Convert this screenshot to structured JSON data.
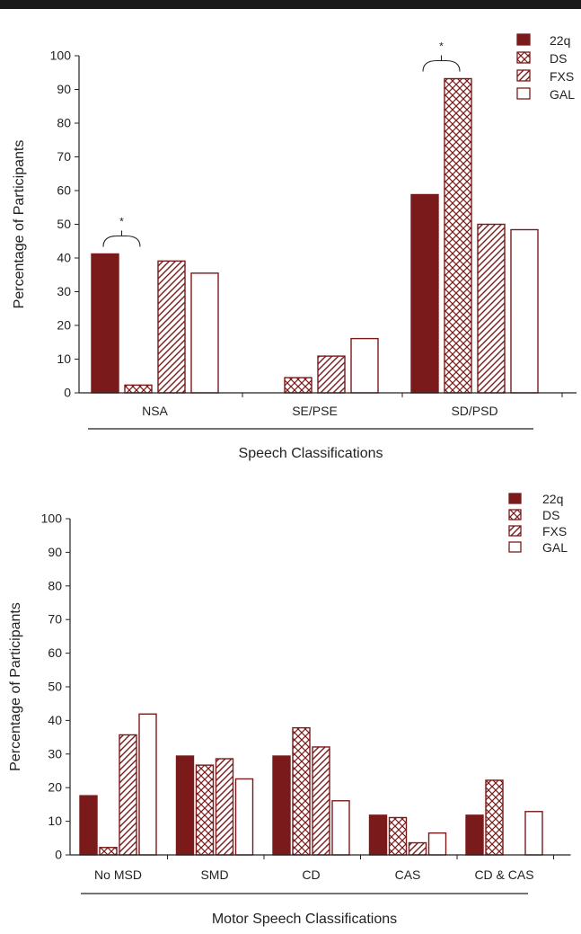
{
  "colors": {
    "dark_red": "#7a1a1a",
    "stroke": "#7a1a1a",
    "axis": "#222222",
    "top_bar": "#1a1a1a"
  },
  "legend": {
    "entries": [
      {
        "label": "22q",
        "pattern": "solid"
      },
      {
        "label": "DS",
        "pattern": "crosshatch"
      },
      {
        "label": "FXS",
        "pattern": "diagonal"
      },
      {
        "label": "GAL",
        "pattern": "open"
      }
    ]
  },
  "chart_data": [
    {
      "type": "bar",
      "categories": [
        "NSA",
        "SE/PSE",
        "SD/PSD"
      ],
      "series": [
        {
          "name": "22q",
          "values": [
            41.2,
            0,
            58.8
          ]
        },
        {
          "name": "DS",
          "values": [
            2.3,
            4.5,
            93.2
          ]
        },
        {
          "name": "FXS",
          "values": [
            39.1,
            10.9,
            50.0
          ]
        },
        {
          "name": "GAL",
          "values": [
            35.5,
            16.1,
            48.4
          ]
        }
      ],
      "xlabel": "Speech Classifications",
      "ylabel": "Percentage of Participants",
      "ylim": [
        0,
        100
      ],
      "yticks": [
        0,
        10,
        20,
        30,
        40,
        50,
        60,
        70,
        80,
        90,
        100
      ],
      "grid": false,
      "legend_position": "top-right",
      "annotations": [
        {
          "text": "*",
          "category": "NSA",
          "spans": [
            "22q",
            "DS"
          ]
        },
        {
          "text": "*",
          "category": "SD/PSD",
          "spans": [
            "22q",
            "DS"
          ]
        }
      ]
    },
    {
      "type": "bar",
      "categories": [
        "No MSD",
        "SMD",
        "CD",
        "CAS",
        "CD & CAS"
      ],
      "series": [
        {
          "name": "22q",
          "values": [
            17.6,
            29.4,
            29.4,
            11.8,
            11.8
          ]
        },
        {
          "name": "DS",
          "values": [
            2.2,
            26.7,
            37.8,
            11.1,
            22.2
          ]
        },
        {
          "name": "FXS",
          "values": [
            35.7,
            28.6,
            32.1,
            3.6,
            0
          ]
        },
        {
          "name": "GAL",
          "values": [
            41.9,
            22.6,
            16.1,
            6.5,
            12.9
          ]
        }
      ],
      "xlabel": "Motor Speech Classifications",
      "ylabel": "Percentage of Participants",
      "ylim": [
        0,
        100
      ],
      "yticks": [
        0,
        10,
        20,
        30,
        40,
        50,
        60,
        70,
        80,
        90,
        100
      ],
      "grid": false,
      "legend_position": "top-right"
    }
  ]
}
